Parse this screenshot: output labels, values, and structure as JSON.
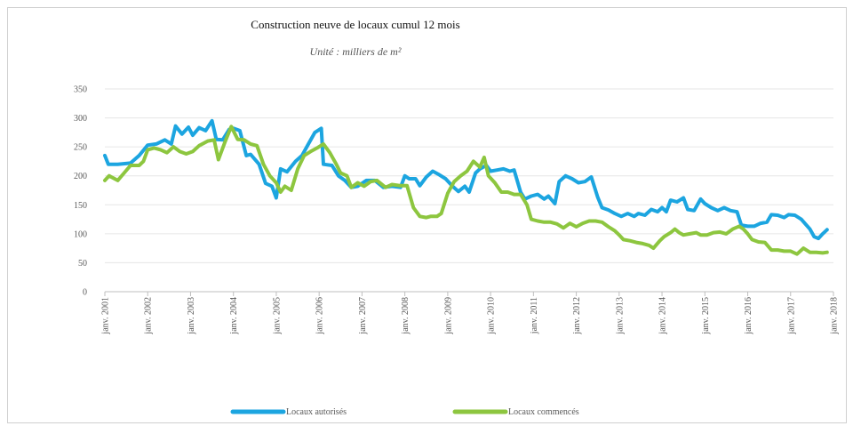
{
  "chart_data": {
    "type": "line",
    "title": "Construction neuve de locaux cumul 12 mois",
    "subtitle": "Unité : milliers de m²",
    "ylim": [
      0,
      350
    ],
    "yticks": [
      0,
      50,
      100,
      150,
      200,
      250,
      300,
      350
    ],
    "xlim": [
      2001,
      2018
    ],
    "xticks": [
      "janv. 2001",
      "janv. 2002",
      "janv. 2003",
      "janv. 2004",
      "janv. 2005",
      "janv. 2006",
      "janv. 2007",
      "janv. 2008",
      "janv. 2009",
      "janv. 2010",
      "janv. 2011",
      "janv. 2012",
      "janv. 2013",
      "janv. 2014",
      "janv. 2015",
      "janv. 2016",
      "janv. 2017",
      "janv. 2018"
    ],
    "grid": "horizontal",
    "legend": "bottom",
    "series": [
      {
        "name": "Locaux autorisés",
        "color": "#1CA5E0",
        "points": [
          [
            2001.0,
            235
          ],
          [
            2001.08,
            220
          ],
          [
            2001.3,
            220
          ],
          [
            2001.6,
            222
          ],
          [
            2001.8,
            235
          ],
          [
            2002.0,
            253
          ],
          [
            2002.2,
            255
          ],
          [
            2002.4,
            262
          ],
          [
            2002.55,
            255
          ],
          [
            2002.65,
            286
          ],
          [
            2002.8,
            272
          ],
          [
            2002.95,
            284
          ],
          [
            2003.05,
            270
          ],
          [
            2003.2,
            283
          ],
          [
            2003.35,
            278
          ],
          [
            2003.5,
            295
          ],
          [
            2003.6,
            263
          ],
          [
            2003.75,
            262
          ],
          [
            2003.9,
            280
          ],
          [
            2004.0,
            282
          ],
          [
            2004.15,
            278
          ],
          [
            2004.3,
            235
          ],
          [
            2004.4,
            237
          ],
          [
            2004.6,
            220
          ],
          [
            2004.75,
            187
          ],
          [
            2004.9,
            182
          ],
          [
            2005.0,
            162
          ],
          [
            2005.1,
            212
          ],
          [
            2005.25,
            207
          ],
          [
            2005.45,
            225
          ],
          [
            2005.6,
            235
          ],
          [
            2005.75,
            255
          ],
          [
            2005.9,
            275
          ],
          [
            2006.05,
            282
          ],
          [
            2006.1,
            220
          ],
          [
            2006.3,
            218
          ],
          [
            2006.45,
            200
          ],
          [
            2006.6,
            192
          ],
          [
            2006.75,
            180
          ],
          [
            2006.9,
            182
          ],
          [
            2007.1,
            192
          ],
          [
            2007.3,
            192
          ],
          [
            2007.5,
            180
          ],
          [
            2007.7,
            182
          ],
          [
            2007.9,
            180
          ],
          [
            2008.0,
            200
          ],
          [
            2008.1,
            195
          ],
          [
            2008.25,
            195
          ],
          [
            2008.35,
            183
          ],
          [
            2008.5,
            198
          ],
          [
            2008.65,
            208
          ],
          [
            2008.8,
            202
          ],
          [
            2008.95,
            195
          ],
          [
            2009.1,
            183
          ],
          [
            2009.25,
            173
          ],
          [
            2009.4,
            182
          ],
          [
            2009.5,
            172
          ],
          [
            2009.65,
            205
          ],
          [
            2009.75,
            212
          ],
          [
            2009.9,
            218
          ],
          [
            2010.0,
            208
          ],
          [
            2010.15,
            210
          ],
          [
            2010.3,
            212
          ],
          [
            2010.45,
            208
          ],
          [
            2010.55,
            210
          ],
          [
            2010.7,
            172
          ],
          [
            2010.8,
            160
          ],
          [
            2010.95,
            165
          ],
          [
            2011.1,
            168
          ],
          [
            2011.25,
            160
          ],
          [
            2011.35,
            165
          ],
          [
            2011.5,
            152
          ],
          [
            2011.6,
            190
          ],
          [
            2011.75,
            200
          ],
          [
            2011.9,
            195
          ],
          [
            2012.05,
            188
          ],
          [
            2012.2,
            190
          ],
          [
            2012.35,
            198
          ],
          [
            2012.5,
            163
          ],
          [
            2012.6,
            145
          ],
          [
            2012.75,
            141
          ],
          [
            2012.9,
            135
          ],
          [
            2013.05,
            130
          ],
          [
            2013.2,
            135
          ],
          [
            2013.35,
            130
          ],
          [
            2013.45,
            135
          ],
          [
            2013.6,
            132
          ],
          [
            2013.75,
            142
          ],
          [
            2013.9,
            138
          ],
          [
            2014.0,
            145
          ],
          [
            2014.1,
            138
          ],
          [
            2014.2,
            158
          ],
          [
            2014.35,
            155
          ],
          [
            2014.5,
            162
          ],
          [
            2014.6,
            142
          ],
          [
            2014.75,
            140
          ],
          [
            2014.9,
            160
          ],
          [
            2015.0,
            152
          ],
          [
            2015.15,
            145
          ],
          [
            2015.3,
            140
          ],
          [
            2015.45,
            145
          ],
          [
            2015.6,
            140
          ],
          [
            2015.75,
            138
          ],
          [
            2015.85,
            115
          ],
          [
            2016.0,
            113
          ],
          [
            2016.15,
            113
          ],
          [
            2016.3,
            118
          ],
          [
            2016.45,
            120
          ],
          [
            2016.55,
            133
          ],
          [
            2016.7,
            132
          ],
          [
            2016.85,
            128
          ],
          [
            2016.95,
            133
          ],
          [
            2017.1,
            132
          ],
          [
            2017.25,
            125
          ],
          [
            2017.45,
            108
          ],
          [
            2017.55,
            95
          ],
          [
            2017.65,
            92
          ],
          [
            2017.75,
            100
          ],
          [
            2017.85,
            107
          ]
        ]
      },
      {
        "name": "Locaux commencés",
        "color": "#8DC63F",
        "points": [
          [
            2001.0,
            192
          ],
          [
            2001.1,
            200
          ],
          [
            2001.3,
            192
          ],
          [
            2001.45,
            205
          ],
          [
            2001.6,
            218
          ],
          [
            2001.8,
            218
          ],
          [
            2001.9,
            225
          ],
          [
            2002.0,
            245
          ],
          [
            2002.15,
            248
          ],
          [
            2002.3,
            245
          ],
          [
            2002.45,
            240
          ],
          [
            2002.6,
            250
          ],
          [
            2002.75,
            242
          ],
          [
            2002.9,
            238
          ],
          [
            2003.05,
            242
          ],
          [
            2003.2,
            252
          ],
          [
            2003.4,
            260
          ],
          [
            2003.55,
            262
          ],
          [
            2003.65,
            228
          ],
          [
            2003.8,
            258
          ],
          [
            2003.95,
            285
          ],
          [
            2004.1,
            263
          ],
          [
            2004.25,
            262
          ],
          [
            2004.4,
            255
          ],
          [
            2004.55,
            252
          ],
          [
            2004.7,
            220
          ],
          [
            2004.85,
            200
          ],
          [
            2005.0,
            188
          ],
          [
            2005.1,
            172
          ],
          [
            2005.2,
            182
          ],
          [
            2005.35,
            175
          ],
          [
            2005.5,
            212
          ],
          [
            2005.65,
            235
          ],
          [
            2005.8,
            242
          ],
          [
            2005.95,
            248
          ],
          [
            2006.1,
            255
          ],
          [
            2006.25,
            240
          ],
          [
            2006.4,
            220
          ],
          [
            2006.5,
            205
          ],
          [
            2006.65,
            200
          ],
          [
            2006.75,
            180
          ],
          [
            2006.9,
            188
          ],
          [
            2007.05,
            182
          ],
          [
            2007.2,
            190
          ],
          [
            2007.35,
            192
          ],
          [
            2007.55,
            180
          ],
          [
            2007.7,
            185
          ],
          [
            2007.9,
            183
          ],
          [
            2008.05,
            183
          ],
          [
            2008.2,
            145
          ],
          [
            2008.35,
            130
          ],
          [
            2008.5,
            128
          ],
          [
            2008.6,
            130
          ],
          [
            2008.75,
            130
          ],
          [
            2008.85,
            135
          ],
          [
            2009.0,
            170
          ],
          [
            2009.15,
            190
          ],
          [
            2009.3,
            200
          ],
          [
            2009.45,
            208
          ],
          [
            2009.6,
            225
          ],
          [
            2009.75,
            215
          ],
          [
            2009.85,
            232
          ],
          [
            2009.95,
            200
          ],
          [
            2010.1,
            188
          ],
          [
            2010.25,
            172
          ],
          [
            2010.4,
            172
          ],
          [
            2010.55,
            168
          ],
          [
            2010.7,
            168
          ],
          [
            2010.85,
            150
          ],
          [
            2010.95,
            125
          ],
          [
            2011.1,
            122
          ],
          [
            2011.25,
            120
          ],
          [
            2011.4,
            120
          ],
          [
            2011.55,
            117
          ],
          [
            2011.7,
            110
          ],
          [
            2011.85,
            118
          ],
          [
            2012.0,
            112
          ],
          [
            2012.15,
            118
          ],
          [
            2012.3,
            122
          ],
          [
            2012.45,
            122
          ],
          [
            2012.6,
            120
          ],
          [
            2012.75,
            112
          ],
          [
            2012.9,
            105
          ],
          [
            2013.0,
            98
          ],
          [
            2013.1,
            90
          ],
          [
            2013.25,
            88
          ],
          [
            2013.4,
            85
          ],
          [
            2013.55,
            83
          ],
          [
            2013.7,
            80
          ],
          [
            2013.8,
            75
          ],
          [
            2013.95,
            88
          ],
          [
            2014.05,
            95
          ],
          [
            2014.2,
            102
          ],
          [
            2014.3,
            108
          ],
          [
            2014.4,
            102
          ],
          [
            2014.5,
            98
          ],
          [
            2014.65,
            100
          ],
          [
            2014.8,
            102
          ],
          [
            2014.9,
            98
          ],
          [
            2015.05,
            98
          ],
          [
            2015.2,
            102
          ],
          [
            2015.35,
            103
          ],
          [
            2015.5,
            100
          ],
          [
            2015.65,
            108
          ],
          [
            2015.8,
            113
          ],
          [
            2015.9,
            108
          ],
          [
            2016.0,
            100
          ],
          [
            2016.1,
            90
          ],
          [
            2016.25,
            86
          ],
          [
            2016.4,
            85
          ],
          [
            2016.55,
            72
          ],
          [
            2016.7,
            72
          ],
          [
            2016.85,
            70
          ],
          [
            2017.0,
            70
          ],
          [
            2017.15,
            65
          ],
          [
            2017.3,
            75
          ],
          [
            2017.45,
            68
          ],
          [
            2017.6,
            68
          ],
          [
            2017.75,
            67
          ],
          [
            2017.85,
            68
          ]
        ]
      }
    ]
  }
}
